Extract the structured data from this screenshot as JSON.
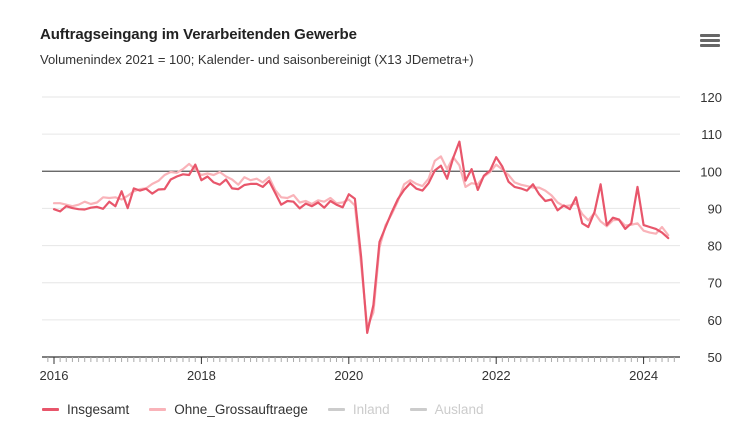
{
  "header": {
    "title": "Auftragseingang im Verarbeitenden Gewerbe",
    "subtitle": "Volumenindex 2021 = 100; Kalender- und saisonbereinigt (X13 JDemetra+)",
    "menu_icon": "hamburger-menu-icon"
  },
  "chart_data": {
    "type": "line",
    "title": "Auftragseingang im Verarbeitenden Gewerbe",
    "subtitle": "Volumenindex 2021 = 100; Kalender- und saisonbereinigt (X13 JDemetra+)",
    "xlabel": "",
    "ylabel": "",
    "x_start": "2016-01",
    "x_frequency": "monthly",
    "x_ticks": [
      "2016",
      "2018",
      "2020",
      "2022",
      "2024"
    ],
    "y_ticks": [
      50,
      60,
      70,
      80,
      90,
      100,
      110,
      120
    ],
    "ylim": [
      50,
      120
    ],
    "y_axis_side": "right",
    "grid": true,
    "reference_line": 100,
    "legend_position": "bottom-left",
    "series": [
      {
        "name": "Insgesamt",
        "color": "#e8566b",
        "visible": true,
        "values": [
          89.8,
          89.2,
          90.6,
          90.1,
          89.8,
          89.7,
          90.2,
          90.4,
          89.9,
          91.8,
          90.6,
          94.6,
          90.1,
          95.4,
          94.8,
          95.3,
          94.0,
          95.1,
          95.2,
          97.8,
          98.6,
          99.2,
          99.0,
          101.8,
          97.6,
          98.6,
          97.0,
          96.4,
          97.8,
          95.4,
          95.2,
          96.3,
          96.6,
          96.6,
          95.8,
          97.4,
          94.2,
          91.0,
          92.0,
          91.8,
          90.0,
          91.3,
          90.6,
          91.6,
          90.2,
          92.0,
          91.0,
          90.3,
          93.8,
          92.6,
          77.0,
          56.5,
          64.0,
          81.0,
          85.0,
          89.0,
          92.5,
          95.0,
          96.8,
          95.3,
          94.8,
          96.8,
          100.2,
          101.5,
          98.0,
          103.6,
          108.0,
          97.5,
          100.6,
          95.0,
          98.8,
          100.2,
          103.8,
          101.3,
          97.2,
          95.8,
          95.4,
          94.8,
          96.5,
          93.8,
          92.0,
          92.4,
          89.5,
          90.8,
          89.8,
          93.0,
          86.0,
          85.0,
          89.0,
          96.5,
          85.5,
          87.5,
          87.0,
          84.5,
          86.0,
          95.8,
          85.5,
          85.0,
          84.5,
          83.5,
          82.0
        ]
      },
      {
        "name": "Ohne_Grossauftraege",
        "color": "#f9b3b9",
        "visible": true,
        "values": [
          91.4,
          91.4,
          91.0,
          90.6,
          91.0,
          91.8,
          91.2,
          91.6,
          93.0,
          92.8,
          93.0,
          92.4,
          93.4,
          94.6,
          95.2,
          95.4,
          96.6,
          97.4,
          99.0,
          99.8,
          99.6,
          100.6,
          102.0,
          100.5,
          99.0,
          99.4,
          99.0,
          99.8,
          98.6,
          97.8,
          96.4,
          98.4,
          97.6,
          98.0,
          97.0,
          98.4,
          95.0,
          93.0,
          92.8,
          93.6,
          91.6,
          92.0,
          91.2,
          92.2,
          91.8,
          92.8,
          91.4,
          91.6,
          92.4,
          90.8,
          75.0,
          58.0,
          62.0,
          79.5,
          85.5,
          88.5,
          92.0,
          96.5,
          97.6,
          96.6,
          96.0,
          98.0,
          102.8,
          104.0,
          100.6,
          103.8,
          101.6,
          95.8,
          96.8,
          96.5,
          98.6,
          99.8,
          101.8,
          100.5,
          99.0,
          97.0,
          96.4,
          96.0,
          95.6,
          95.6,
          94.8,
          93.5,
          91.6,
          90.6,
          90.8,
          91.4,
          88.5,
          86.8,
          88.8,
          86.5,
          85.2,
          86.8,
          87.0,
          85.4,
          85.6,
          86.0,
          84.0,
          83.5,
          83.2,
          85.0,
          82.8
        ]
      },
      {
        "name": "Inland",
        "color": "#cccccc",
        "visible": false,
        "values": []
      },
      {
        "name": "Ausland",
        "color": "#cccccc",
        "visible": false,
        "values": []
      }
    ]
  }
}
